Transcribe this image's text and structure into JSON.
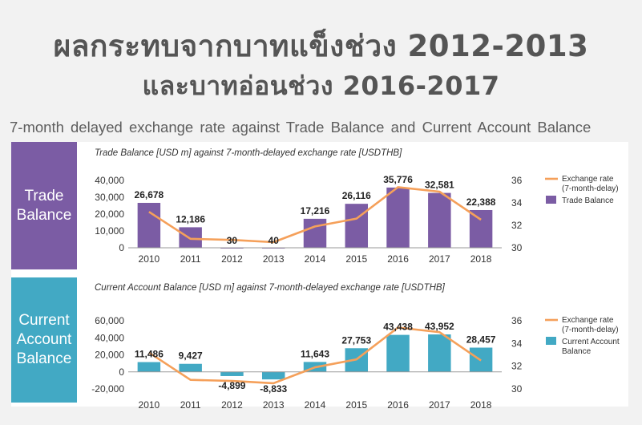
{
  "headline": {
    "line1": "ผลกระทบจากบาทแข็งช่วง 2012-2013",
    "line2": "และบาทอ่อนช่วง 2016-2017"
  },
  "subheading": "7-month delayed exchange rate against Trade Balance and Current Account Balance",
  "side_labels": {
    "trade": [
      "Trade",
      "Balance"
    ],
    "current_account": [
      "Current",
      "Account",
      "Balance"
    ]
  },
  "colors": {
    "trade_bar": "#7b5ca4",
    "ca_bar": "#42a9c4",
    "exchange_line": "#f5a05a",
    "background": "#f2f2f2"
  },
  "chart_data": [
    {
      "type": "bar",
      "title": "Trade Balance [USD m] against 7-month-delayed exchange rate [USDTHB]",
      "categories": [
        "2010",
        "2011",
        "2012",
        "2013",
        "2014",
        "2015",
        "2016",
        "2017",
        "2018"
      ],
      "series": [
        {
          "name": "Trade Balance",
          "type": "bar",
          "axis": "left",
          "values": [
            26678,
            12186,
            30,
            40,
            17216,
            26116,
            35776,
            32581,
            22388
          ],
          "labels": [
            "26,678",
            "12,186",
            "30",
            "40",
            "17,216",
            "26,116",
            "35,776",
            "32,581",
            "22,388"
          ]
        },
        {
          "name": "Exchange rate (7-month-delay)",
          "legend_lines": [
            "Exchange rate",
            "(7-month-delay)"
          ],
          "type": "line",
          "axis": "right",
          "values": [
            33.2,
            30.8,
            30.7,
            30.5,
            31.9,
            32.6,
            35.4,
            35.0,
            32.5
          ]
        }
      ],
      "legend_labels": {
        "bar": [
          "Trade Balance"
        ]
      },
      "y_left": {
        "min": 0,
        "max": 40000,
        "ticks": [
          0,
          10000,
          20000,
          30000,
          40000
        ],
        "tick_labels": [
          "0",
          "10,000",
          "20,000",
          "30,000",
          "40,000"
        ]
      },
      "y_right": {
        "min": 30,
        "max": 36,
        "ticks": [
          30,
          32,
          34,
          36
        ],
        "tick_labels": [
          "30",
          "32",
          "34",
          "36"
        ]
      },
      "grid": false,
      "legend_position": "right"
    },
    {
      "type": "bar",
      "title": "Current Account Balance [USD m] against 7-month-delayed exchange rate [USDTHB]",
      "categories": [
        "2010",
        "2011",
        "2012",
        "2013",
        "2014",
        "2015",
        "2016",
        "2017",
        "2018"
      ],
      "series": [
        {
          "name": "Current Account Balance",
          "type": "bar",
          "axis": "left",
          "values": [
            11486,
            9427,
            -4899,
            -8833,
            11643,
            27753,
            43438,
            43952,
            28457
          ],
          "labels": [
            "11,486",
            "9,427",
            "-4,899",
            "-8,833",
            "11,643",
            "27,753",
            "43,438",
            "43,952",
            "28,457"
          ]
        },
        {
          "name": "Exchange rate (7-month-delay)",
          "legend_lines": [
            "Exchange rate",
            "(7-month-delay)"
          ],
          "type": "line",
          "axis": "right",
          "values": [
            33.2,
            30.8,
            30.7,
            30.5,
            31.9,
            32.6,
            35.4,
            35.0,
            32.5
          ]
        }
      ],
      "legend_labels": {
        "bar": [
          "Current Account",
          "Balance"
        ]
      },
      "y_left": {
        "min": -20000,
        "max": 60000,
        "ticks": [
          -20000,
          0,
          20000,
          40000,
          60000
        ],
        "tick_labels": [
          "-20,000",
          "0",
          "20,000",
          "40,000",
          "60,000"
        ]
      },
      "y_right": {
        "min": 30,
        "max": 36,
        "ticks": [
          30,
          32,
          34,
          36
        ],
        "tick_labels": [
          "30",
          "32",
          "34",
          "36"
        ]
      },
      "grid": false,
      "legend_position": "right"
    }
  ]
}
